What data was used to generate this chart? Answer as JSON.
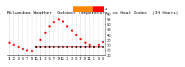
{
  "title": "Milwaukee Weather  Outdoor Temperature  vs Heat Index  (24 Hours)",
  "bg_color": "#ffffff",
  "plot_bg": "#ffffff",
  "grid_color": "#cccccc",
  "temp_color": "#ff0000",
  "heat_color": "#000000",
  "legend_orange": "#ff8800",
  "legend_red": "#ff0000",
  "x_labels": [
    "1",
    "2",
    "3",
    "5",
    "7",
    "9",
    "11",
    "1",
    "3",
    "5",
    "7",
    "9",
    "11",
    "1",
    "3",
    "5",
    "7",
    "9",
    "11",
    "1",
    "3",
    "5"
  ],
  "x_ticks": [
    0,
    1,
    2,
    3,
    4,
    5,
    6,
    7,
    8,
    9,
    10,
    11,
    12,
    13,
    14,
    15,
    16,
    17,
    18,
    19,
    20,
    21
  ],
  "temp_x": [
    0,
    1,
    2,
    3,
    4,
    5,
    6,
    7,
    8,
    9,
    10,
    11,
    12,
    13,
    14,
    15,
    16,
    17,
    18,
    19,
    20,
    21
  ],
  "temp_y": [
    32,
    30,
    28,
    26,
    25,
    24,
    28,
    35,
    42,
    48,
    52,
    55,
    53,
    48,
    44,
    40,
    36,
    32,
    30,
    28,
    30,
    33
  ],
  "heat_x": [
    6,
    7,
    8,
    9,
    10,
    11,
    12,
    13,
    14,
    15,
    16,
    17,
    18,
    19,
    20,
    21
  ],
  "heat_y": [
    28,
    28,
    28,
    28,
    28,
    28,
    28,
    28,
    28,
    28,
    28,
    28,
    28,
    28,
    28,
    28
  ],
  "ylim": [
    20,
    60
  ],
  "xlim": [
    -0.5,
    21.5
  ],
  "yticks": [
    20,
    25,
    30,
    35,
    40,
    45,
    50,
    55,
    60
  ],
  "title_fontsize": 4.5,
  "tick_fontsize": 3.5
}
